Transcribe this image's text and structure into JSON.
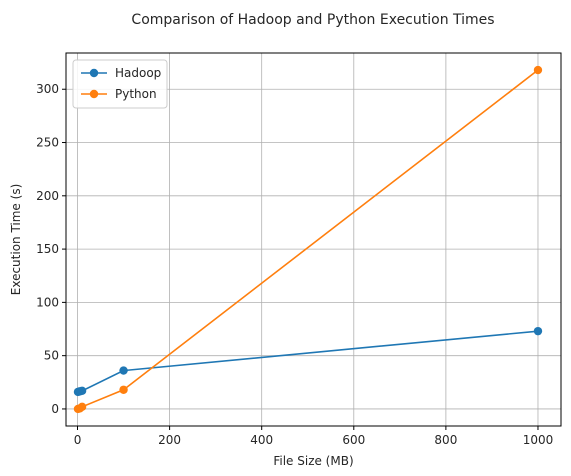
{
  "chart_data": {
    "type": "line",
    "title": "Comparison of Hadoop and Python Execution Times",
    "xlabel": "File Size (MB)",
    "ylabel": "Execution Time (s)",
    "xlim": [
      -25,
      1050
    ],
    "ylim": [
      -16,
      334
    ],
    "xticks": [
      0,
      200,
      400,
      600,
      800,
      1000
    ],
    "yticks": [
      0,
      50,
      100,
      150,
      200,
      250,
      300
    ],
    "grid": true,
    "legend_position": "top-left",
    "series": [
      {
        "name": "Hadoop",
        "color": "#1f77b4",
        "x": [
          1,
          5,
          10,
          100,
          1000
        ],
        "y": [
          16,
          16.5,
          17,
          36,
          73
        ]
      },
      {
        "name": "Python",
        "color": "#ff7f0e",
        "x": [
          1,
          5,
          10,
          100,
          1000
        ],
        "y": [
          0,
          0.5,
          2,
          18,
          318
        ]
      }
    ]
  }
}
